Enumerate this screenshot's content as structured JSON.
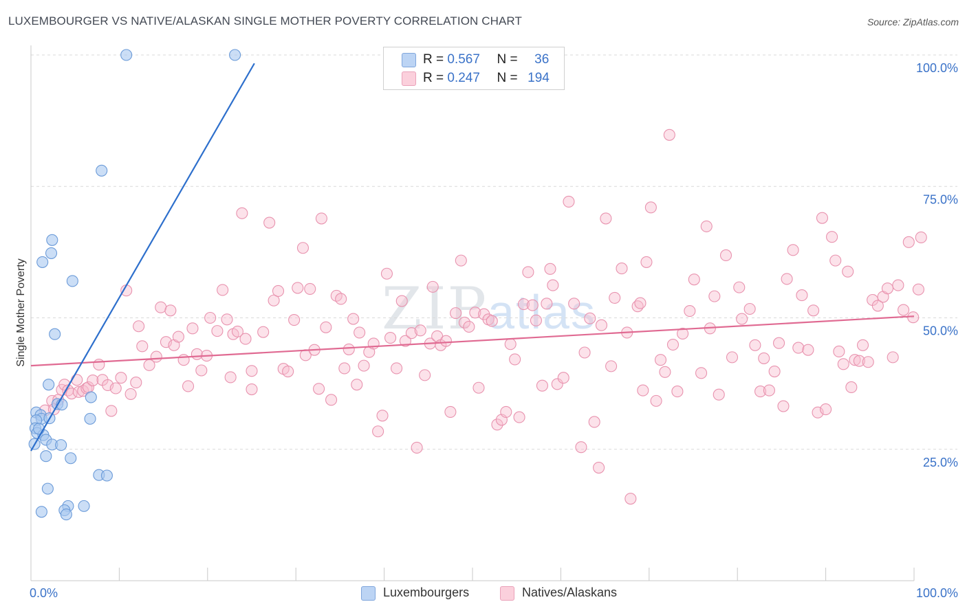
{
  "title": "LUXEMBOURGER VS NATIVE/ALASKAN SINGLE MOTHER POVERTY CORRELATION CHART",
  "source": "Source: ZipAtlas.com",
  "watermark": {
    "zip": "ZIP",
    "atlas": "atlas"
  },
  "legend_top": {
    "rows": [
      {
        "r_label": "R =",
        "r_value": "0.567",
        "n_label": "N =",
        "n_value": "36",
        "color": "#a9c8f0"
      },
      {
        "r_label": "R =",
        "r_value": "0.247",
        "n_label": "N =",
        "n_value": "194",
        "color": "#f8bfd0"
      }
    ]
  },
  "legend_bottom": {
    "series1": "Luxembourgers",
    "series2": "Natives/Alaskans"
  },
  "colors": {
    "blue_fill": "#a9c8f0",
    "blue_stroke": "#6a9ad8",
    "blue_line": "#2d6fcc",
    "pink_fill": "#f8bfd0",
    "pink_stroke": "#e892ae",
    "pink_line": "#e06a92",
    "axis_label": "#3a72c8",
    "grid": "#d9d9d9"
  },
  "chart_data": {
    "type": "scatter",
    "title": "LUXEMBOURGER VS NATIVE/ALASKAN SINGLE MOTHER POVERTY CORRELATION CHART",
    "xlabel": "",
    "ylabel": "Single Mother Poverty",
    "xlim": [
      0,
      100
    ],
    "ylim": [
      0,
      100
    ],
    "x_tick_labels": [
      "0.0%",
      "100.0%"
    ],
    "y_tick_labels": [
      {
        "value": 25,
        "label": "25.0%"
      },
      {
        "value": 50,
        "label": "50.0%"
      },
      {
        "value": 75,
        "label": "75.0%"
      },
      {
        "value": 100,
        "label": "100.0%"
      }
    ],
    "series": [
      {
        "name": "Luxembourgers",
        "r": 0.567,
        "n": 36,
        "trend": {
          "x1": 0,
          "y1": 24.7,
          "x2": 25.3,
          "y2": 98.4
        },
        "points": [
          [
            10.8,
            100
          ],
          [
            23.1,
            100
          ],
          [
            8.0,
            78.0
          ],
          [
            2.4,
            64.8
          ],
          [
            1.3,
            60.6
          ],
          [
            2.3,
            62.3
          ],
          [
            4.7,
            57.0
          ],
          [
            2.7,
            46.9
          ],
          [
            2.0,
            37.3
          ],
          [
            3.0,
            33.6
          ],
          [
            3.5,
            33.5
          ],
          [
            6.8,
            34.9
          ],
          [
            0.6,
            32.0
          ],
          [
            1.1,
            31.5
          ],
          [
            1.2,
            30.8
          ],
          [
            2.1,
            30.9
          ],
          [
            0.6,
            30.5
          ],
          [
            6.7,
            30.8
          ],
          [
            0.5,
            29.0
          ],
          [
            0.7,
            28.1
          ],
          [
            1.4,
            27.7
          ],
          [
            1.7,
            26.8
          ],
          [
            0.4,
            26.0
          ],
          [
            2.4,
            25.9
          ],
          [
            3.4,
            25.8
          ],
          [
            1.7,
            23.7
          ],
          [
            4.5,
            23.3
          ],
          [
            7.7,
            20.1
          ],
          [
            8.6,
            20.0
          ],
          [
            1.9,
            17.5
          ],
          [
            4.2,
            14.2
          ],
          [
            6.0,
            14.2
          ],
          [
            1.2,
            13.1
          ],
          [
            3.8,
            13.4
          ],
          [
            4.0,
            12.6
          ],
          [
            0.9,
            28.9
          ]
        ]
      },
      {
        "name": "Natives/Alaskans",
        "r": 0.247,
        "n": 194,
        "trend": {
          "x1": 0,
          "y1": 40.9,
          "x2": 100,
          "y2": 50.3
        },
        "points": [
          [
            1.6,
            32.4
          ],
          [
            2.4,
            34.2
          ],
          [
            2.6,
            32.6
          ],
          [
            3.1,
            34.4
          ],
          [
            3.5,
            36.3
          ],
          [
            3.8,
            37.3
          ],
          [
            4.2,
            36.2
          ],
          [
            4.6,
            35.6
          ],
          [
            5.2,
            38.2
          ],
          [
            5.4,
            35.9
          ],
          [
            5.9,
            36.1
          ],
          [
            6.3,
            36.6
          ],
          [
            6.5,
            36.8
          ],
          [
            7.0,
            38.1
          ],
          [
            7.7,
            41.1
          ],
          [
            8.1,
            38.2
          ],
          [
            8.7,
            37.2
          ],
          [
            9.1,
            32.3
          ],
          [
            9.6,
            36.6
          ],
          [
            10.2,
            38.6
          ],
          [
            10.8,
            55.2
          ],
          [
            11.3,
            35.5
          ],
          [
            11.9,
            37.7
          ],
          [
            12.2,
            48.4
          ],
          [
            12.6,
            44.6
          ],
          [
            13.4,
            41.0
          ],
          [
            14.2,
            42.6
          ],
          [
            14.7,
            52.0
          ],
          [
            15.3,
            45.4
          ],
          [
            15.8,
            51.4
          ],
          [
            16.2,
            44.8
          ],
          [
            16.7,
            46.4
          ],
          [
            17.3,
            42.0
          ],
          [
            17.8,
            37.0
          ],
          [
            18.3,
            48.0
          ],
          [
            18.8,
            43.1
          ],
          [
            19.3,
            40.0
          ],
          [
            19.9,
            42.8
          ],
          [
            20.3,
            50.0
          ],
          [
            21.1,
            47.5
          ],
          [
            21.7,
            55.3
          ],
          [
            22.2,
            49.7
          ],
          [
            22.6,
            38.7
          ],
          [
            22.9,
            46.9
          ],
          [
            23.4,
            47.4
          ],
          [
            23.9,
            69.9
          ],
          [
            24.3,
            46.0
          ],
          [
            25.0,
            36.4
          ],
          [
            25.0,
            39.9
          ],
          [
            26.3,
            47.3
          ],
          [
            27.0,
            68.1
          ],
          [
            27.5,
            53.3
          ],
          [
            28.0,
            55.1
          ],
          [
            28.6,
            40.3
          ],
          [
            29.1,
            39.8
          ],
          [
            29.8,
            49.6
          ],
          [
            30.2,
            55.7
          ],
          [
            30.8,
            63.3
          ],
          [
            31.1,
            42.9
          ],
          [
            31.6,
            55.5
          ],
          [
            32.1,
            43.9
          ],
          [
            32.6,
            36.5
          ],
          [
            32.9,
            68.9
          ],
          [
            33.4,
            48.2
          ],
          [
            34.0,
            34.4
          ],
          [
            34.6,
            54.2
          ],
          [
            35.1,
            53.6
          ],
          [
            35.5,
            40.4
          ],
          [
            36.0,
            44.0
          ],
          [
            36.5,
            49.8
          ],
          [
            36.9,
            37.3
          ],
          [
            37.2,
            47.2
          ],
          [
            37.7,
            40.9
          ],
          [
            38.3,
            43.5
          ],
          [
            38.8,
            45.1
          ],
          [
            39.3,
            28.4
          ],
          [
            39.8,
            31.4
          ],
          [
            40.3,
            58.4
          ],
          [
            40.7,
            46.2
          ],
          [
            41.4,
            40.4
          ],
          [
            42.0,
            53.2
          ],
          [
            42.4,
            45.6
          ],
          [
            43.1,
            47.1
          ],
          [
            43.7,
            25.3
          ],
          [
            44.1,
            47.6
          ],
          [
            44.6,
            39.1
          ],
          [
            45.2,
            45.1
          ],
          [
            45.5,
            55.9
          ],
          [
            46.0,
            46.5
          ],
          [
            46.4,
            44.8
          ],
          [
            47.0,
            45.6
          ],
          [
            47.5,
            32.1
          ],
          [
            48.1,
            50.9
          ],
          [
            48.7,
            60.9
          ],
          [
            49.1,
            49.1
          ],
          [
            49.6,
            48.3
          ],
          [
            50.3,
            51.0
          ],
          [
            50.7,
            36.7
          ],
          [
            51.3,
            50.7
          ],
          [
            51.8,
            49.7
          ],
          [
            52.2,
            49.4
          ],
          [
            52.8,
            29.7
          ],
          [
            53.3,
            30.6
          ],
          [
            53.8,
            32.1
          ],
          [
            54.3,
            45.0
          ],
          [
            54.8,
            42.1
          ],
          [
            55.3,
            31.1
          ],
          [
            55.8,
            52.6
          ],
          [
            56.3,
            58.7
          ],
          [
            56.8,
            52.4
          ],
          [
            57.2,
            49.5
          ],
          [
            57.9,
            37.1
          ],
          [
            58.4,
            52.7
          ],
          [
            58.8,
            59.3
          ],
          [
            59.1,
            56.2
          ],
          [
            59.6,
            37.4
          ],
          [
            60.3,
            38.6
          ],
          [
            60.9,
            72.1
          ],
          [
            61.5,
            52.7
          ],
          [
            62.3,
            25.4
          ],
          [
            62.7,
            43.4
          ],
          [
            63.3,
            49.9
          ],
          [
            63.8,
            30.2
          ],
          [
            64.3,
            21.5
          ],
          [
            64.6,
            48.6
          ],
          [
            65.1,
            68.9
          ],
          [
            65.7,
            40.8
          ],
          [
            66.1,
            53.8
          ],
          [
            66.9,
            59.4
          ],
          [
            67.5,
            47.2
          ],
          [
            67.9,
            15.6
          ],
          [
            68.7,
            52.2
          ],
          [
            69.0,
            52.8
          ],
          [
            69.3,
            36.2
          ],
          [
            69.7,
            60.6
          ],
          [
            70.2,
            71.0
          ],
          [
            70.8,
            34.2
          ],
          [
            71.3,
            42.0
          ],
          [
            71.8,
            39.7
          ],
          [
            72.3,
            84.8
          ],
          [
            72.7,
            44.9
          ],
          [
            73.2,
            36.0
          ],
          [
            73.8,
            47.0
          ],
          [
            74.6,
            51.3
          ],
          [
            75.1,
            57.3
          ],
          [
            75.9,
            39.5
          ],
          [
            76.5,
            67.4
          ],
          [
            76.9,
            48.0
          ],
          [
            77.4,
            54.1
          ],
          [
            77.9,
            35.4
          ],
          [
            78.7,
            61.9
          ],
          [
            79.4,
            42.5
          ],
          [
            80.2,
            55.8
          ],
          [
            80.5,
            49.8
          ],
          [
            81.4,
            51.7
          ],
          [
            82.0,
            44.8
          ],
          [
            82.6,
            36.0
          ],
          [
            83.0,
            42.3
          ],
          [
            83.6,
            36.2
          ],
          [
            84.2,
            39.8
          ],
          [
            84.7,
            45.2
          ],
          [
            85.2,
            33.2
          ],
          [
            85.6,
            57.4
          ],
          [
            86.3,
            62.9
          ],
          [
            86.9,
            44.3
          ],
          [
            87.3,
            54.3
          ],
          [
            88.0,
            43.9
          ],
          [
            88.6,
            51.4
          ],
          [
            89.1,
            32.0
          ],
          [
            89.6,
            69.0
          ],
          [
            90.0,
            32.6
          ],
          [
            90.7,
            65.4
          ],
          [
            91.1,
            60.9
          ],
          [
            91.5,
            43.6
          ],
          [
            92.0,
            41.2
          ],
          [
            92.5,
            58.8
          ],
          [
            92.9,
            36.8
          ],
          [
            93.3,
            42.0
          ],
          [
            93.8,
            41.8
          ],
          [
            94.2,
            44.8
          ],
          [
            94.8,
            41.6
          ],
          [
            95.3,
            53.4
          ],
          [
            95.9,
            52.3
          ],
          [
            96.5,
            54.0
          ],
          [
            97.0,
            55.6
          ],
          [
            97.6,
            42.5
          ],
          [
            98.2,
            56.2
          ],
          [
            98.8,
            51.5
          ],
          [
            99.4,
            64.4
          ],
          [
            99.9,
            50.1
          ],
          [
            100.5,
            55.4
          ],
          [
            101.0,
            65.3
          ]
        ]
      }
    ]
  }
}
